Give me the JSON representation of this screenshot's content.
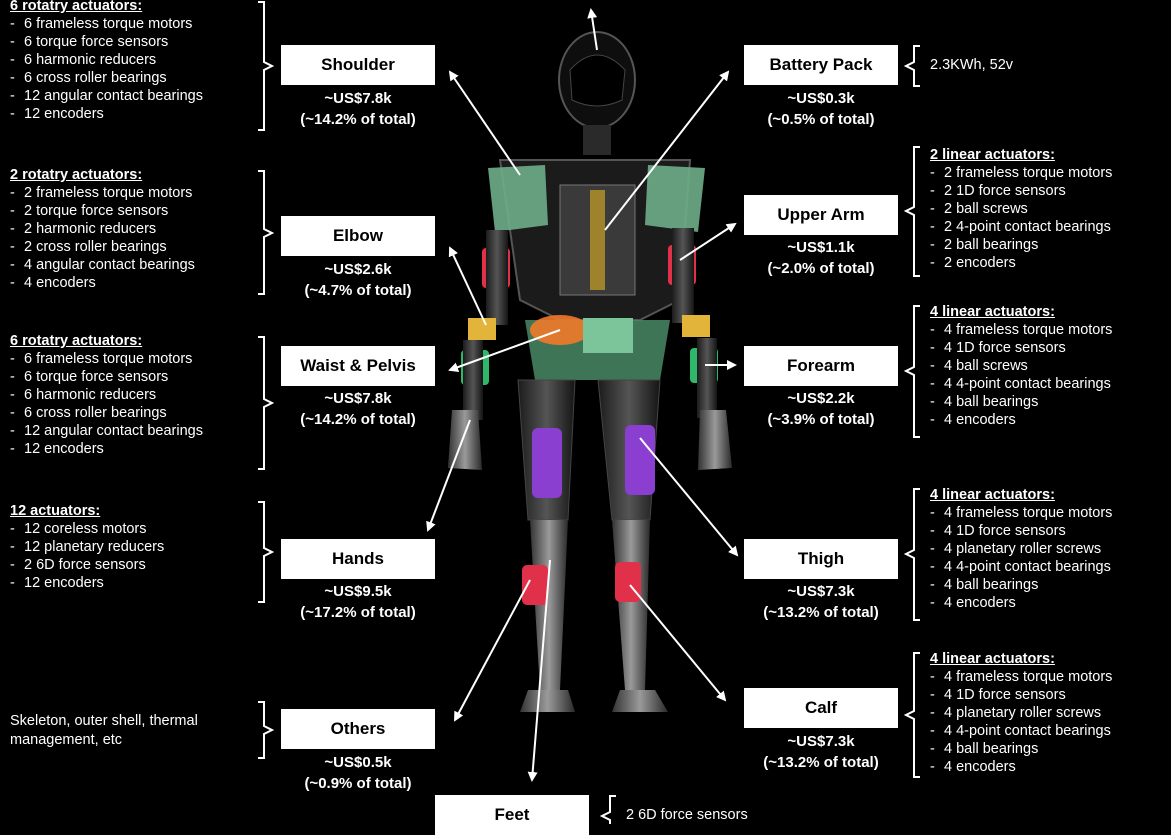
{
  "parts": [
    {
      "key": "shoulder",
      "name": "Shoulder",
      "cost": "~US$7.8k",
      "share": "(~14.2% of total)",
      "side": "left",
      "header": "6 rotatry actuators:",
      "items": [
        "6 frameless torque motors",
        "6 torque force sensors",
        "6 harmonic reducers",
        "6 cross roller bearings",
        "12 angular contact bearings",
        "12 encoders"
      ]
    },
    {
      "key": "elbow",
      "name": "Elbow",
      "cost": "~US$2.6k",
      "share": "(~4.7% of total)",
      "side": "left",
      "header": "2 rotatry actuators:",
      "items": [
        "2 frameless torque motors",
        "2 torque force sensors",
        "2 harmonic reducers",
        "2 cross roller bearings",
        "4 angular contact bearings",
        "4 encoders"
      ]
    },
    {
      "key": "waist",
      "name": "Waist & Pelvis",
      "cost": "~US$7.8k",
      "share": "(~14.2% of total)",
      "side": "left",
      "header": "6 rotatry actuators:",
      "items": [
        "6 frameless torque motors",
        "6 torque force sensors",
        "6 harmonic reducers",
        "6 cross roller bearings",
        "12 angular contact bearings",
        "12 encoders"
      ]
    },
    {
      "key": "hands",
      "name": "Hands",
      "cost": "~US$9.5k",
      "share": "(~17.2% of total)",
      "side": "left",
      "header": "12 actuators:",
      "items": [
        "12 coreless motors",
        "12 planetary reducers",
        "2 6D force sensors",
        "12 encoders"
      ]
    },
    {
      "key": "others",
      "name": "Others",
      "cost": "~US$0.5k",
      "share": "(~0.9% of total)",
      "side": "left",
      "text": "Skeleton, outer shell, thermal management, etc"
    },
    {
      "key": "battery",
      "name": "Battery Pack",
      "cost": "~US$0.3k",
      "share": "(~0.5% of total)",
      "side": "right",
      "text": "2.3KWh, 52v"
    },
    {
      "key": "upperarm",
      "name": "Upper Arm",
      "cost": "~US$1.1k",
      "share": "(~2.0% of total)",
      "side": "right",
      "header": "2 linear actuators:",
      "items": [
        "2 frameless torque motors",
        "2 1D force sensors",
        "2 ball screws",
        "2 4-point contact bearings",
        "2 ball bearings",
        "2 encoders"
      ]
    },
    {
      "key": "forearm",
      "name": "Forearm",
      "cost": "~US$2.2k",
      "share": "(~3.9% of total)",
      "side": "right",
      "header": "4 linear actuators:",
      "items": [
        "4 frameless torque motors",
        "4 1D force sensors",
        "4 ball screws",
        "4 4-point contact bearings",
        "4 ball bearings",
        "4 encoders"
      ]
    },
    {
      "key": "thigh",
      "name": "Thigh",
      "cost": "~US$7.3k",
      "share": "(~13.2% of total)",
      "side": "right",
      "header": "4 linear actuators:",
      "items": [
        "4 frameless torque motors",
        "4 1D force sensors",
        "4 planetary roller screws",
        "4 4-point contact bearings",
        "4 ball bearings",
        "4 encoders"
      ]
    },
    {
      "key": "calf",
      "name": "Calf",
      "cost": "~US$7.3k",
      "share": "(~13.2% of total)",
      "side": "right",
      "header": "4 linear actuators:",
      "items": [
        "4 frameless torque motors",
        "4 1D force sensors",
        "4 planetary roller screws",
        "4 4-point contact bearings",
        "4 ball bearings",
        "4 encoders"
      ]
    },
    {
      "key": "feet",
      "name": "Feet",
      "side": "bottom",
      "text": "2 6D force sensors"
    }
  ],
  "colors": {
    "background": "#000000",
    "box": "#ffffff",
    "body_green": "#6fae8a",
    "hand_red": "#e0304a",
    "leg_purple": "#8a3fd1",
    "joint_yellow": "#e3b43a",
    "pelvis_orange": "#f07a2a"
  }
}
